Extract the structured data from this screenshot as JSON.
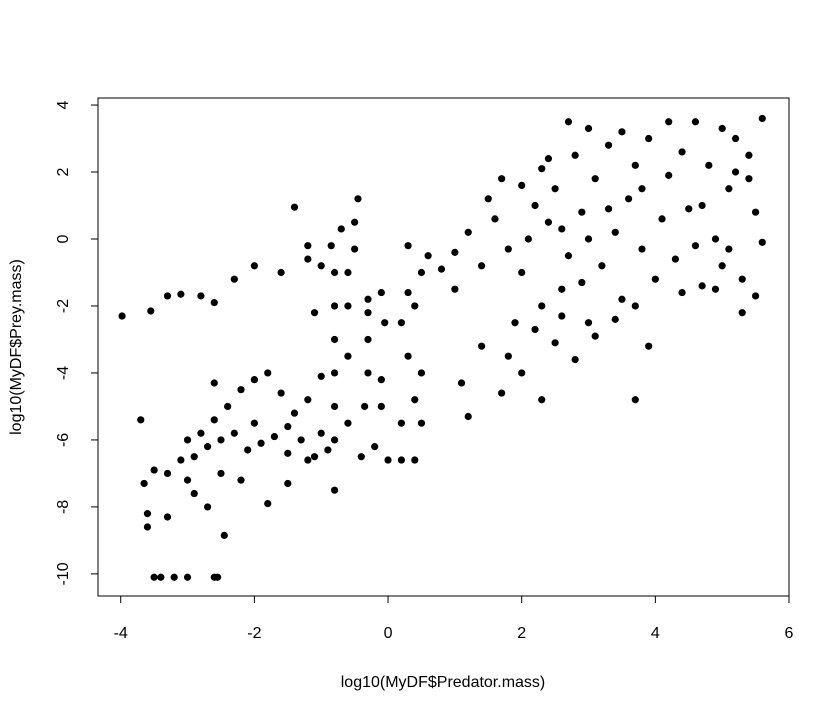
{
  "chart_data": {
    "type": "scatter",
    "xlabel": "log10(MyDF$Predator.mass)",
    "ylabel": "log10(MyDF$Prey.mass)",
    "color": "#000000",
    "xlim": [
      -4.34,
      6
    ],
    "ylim": [
      -10.66,
      4.21
    ],
    "xticks": [
      -4,
      -2,
      0,
      2,
      4,
      6
    ],
    "yticks": [
      -10,
      -8,
      -6,
      -4,
      -2,
      0,
      2,
      4
    ],
    "x": [
      -3.98,
      -3.55,
      -3.3,
      -3.1,
      -2.8,
      -2.6,
      -2.3,
      -2.0,
      -1.6,
      -1.2,
      -3.5,
      -3.4,
      -3.2,
      -3.0,
      -2.6,
      -2.55,
      -2.45,
      -3.6,
      -3.6,
      -3.3,
      -3.65,
      -3.5,
      -3.3,
      -3.1,
      -2.9,
      -2.7,
      -2.5,
      -2.3,
      -2.1,
      -1.9,
      -1.7,
      -1.5,
      -1.3,
      -1.1,
      -0.9,
      -2.6,
      -2.4,
      -2.2,
      -2.6,
      -2.0,
      -1.8,
      -1.6,
      -1.4,
      -1.2,
      -1.0,
      -2.9,
      -2.7,
      -3.0,
      -2.5,
      -2.2,
      -1.8,
      -1.5,
      -3.7,
      -2.8,
      -3.0,
      -2.0,
      -1.5,
      -1.0,
      -1.2,
      -0.8,
      -0.8,
      -0.8,
      -0.8,
      -0.8,
      -0.8,
      -0.8,
      -0.85,
      -0.6,
      -0.6,
      -0.6,
      -0.6,
      -0.5,
      -0.5,
      -0.45,
      -0.4,
      -0.35,
      -0.3,
      -0.3,
      -0.3,
      -0.3,
      -0.2,
      -0.1,
      -0.1,
      -0.05,
      -0.1,
      -1.4,
      -1.2,
      -1.0,
      -0.7,
      -1.1,
      0.0,
      0.2,
      0.4,
      0.2,
      0.4,
      0.5,
      0.3,
      0.2,
      0.3,
      0.5,
      0.3,
      0.6,
      0.8,
      1.0,
      1.2,
      1.4,
      1.6,
      1.8,
      1.0,
      0.5,
      1.1,
      1.4,
      1.8,
      2.0,
      2.3,
      1.7,
      1.9,
      1.5,
      1.2,
      0.4,
      2.0,
      2.1,
      2.2,
      2.3,
      2.4,
      2.5,
      2.6,
      2.7,
      2.8,
      2.9,
      3.0,
      3.1,
      3.2,
      3.3,
      3.4,
      3.5,
      3.6,
      3.7,
      3.8,
      3.9,
      4.0,
      4.1,
      4.2,
      4.3,
      4.4,
      4.5,
      2.2,
      2.5,
      2.8,
      3.1,
      3.4,
      3.7,
      3.0,
      2.7,
      3.5,
      4.2,
      2.4,
      2.0,
      1.7,
      2.6,
      3.7,
      3.9,
      2.9,
      3.3,
      2.6,
      3.8,
      4.4,
      4.6,
      2.3,
      3.0,
      4.7,
      4.8,
      4.9,
      5.0,
      5.1,
      5.2,
      5.3,
      5.4,
      5.5,
      5.6,
      5.5,
      5.3,
      5.1,
      4.9,
      5.0,
      5.4,
      5.6,
      4.7,
      5.2,
      4.6
    ],
    "values": [
      -2.3,
      -2.15,
      -1.7,
      -1.65,
      -1.7,
      -1.9,
      -1.2,
      -0.8,
      -1.0,
      -0.6,
      -10.1,
      -10.1,
      -10.1,
      -10.1,
      -10.1,
      -10.1,
      -8.85,
      -8.6,
      -8.2,
      -8.3,
      -7.3,
      -6.9,
      -7.0,
      -6.6,
      -6.5,
      -6.2,
      -6.0,
      -5.8,
      -6.3,
      -6.1,
      -5.9,
      -6.4,
      -6.0,
      -6.5,
      -6.3,
      -5.4,
      -5.0,
      -4.5,
      -4.3,
      -4.2,
      -4.0,
      -4.6,
      -5.2,
      -4.8,
      -4.1,
      -7.6,
      -8.0,
      -7.2,
      -7.0,
      -7.2,
      -7.9,
      -7.3,
      -5.4,
      -5.8,
      -6.0,
      -5.5,
      -5.6,
      -5.8,
      -6.6,
      -7.5,
      -6.0,
      -5.0,
      -4.0,
      -3.0,
      -2.0,
      -1.0,
      -0.2,
      -5.5,
      -3.5,
      -2.0,
      -1.0,
      0.5,
      -0.3,
      1.2,
      -6.5,
      -5.0,
      -4.0,
      -3.0,
      -2.2,
      -1.8,
      -6.2,
      -5.0,
      -4.2,
      -2.5,
      -1.6,
      0.95,
      -0.2,
      -0.8,
      0.3,
      -2.2,
      -6.6,
      -6.6,
      -6.6,
      -5.5,
      -4.8,
      -4.0,
      -3.5,
      -2.5,
      -1.6,
      -1.0,
      -0.2,
      -0.5,
      -0.9,
      -0.4,
      0.2,
      -0.8,
      0.6,
      -0.3,
      -1.5,
      -5.5,
      -4.3,
      -3.2,
      -3.5,
      -4.0,
      -4.8,
      -4.6,
      -2.5,
      1.2,
      -5.3,
      -2.0,
      -1.0,
      0.0,
      1.0,
      -2.0,
      0.5,
      1.5,
      -1.5,
      -0.5,
      2.5,
      0.8,
      -2.5,
      1.8,
      -0.8,
      2.8,
      0.2,
      -1.8,
      1.2,
      2.2,
      -0.3,
      3.0,
      -1.2,
      0.6,
      1.9,
      -0.6,
      2.6,
      0.9,
      -2.7,
      -3.1,
      -3.6,
      -2.9,
      -2.4,
      -2.0,
      3.3,
      3.5,
      3.2,
      3.5,
      2.4,
      1.6,
      1.8,
      -2.3,
      -4.8,
      -3.2,
      -1.3,
      0.9,
      0.3,
      1.5,
      -1.6,
      -0.2,
      2.1,
      0.0,
      1.0,
      2.2,
      0.0,
      -0.8,
      1.5,
      3.0,
      -1.2,
      2.5,
      0.8,
      3.6,
      -1.7,
      -2.2,
      -0.3,
      -1.5,
      3.3,
      1.8,
      -0.1,
      -1.4,
      2.0,
      3.5
    ]
  }
}
